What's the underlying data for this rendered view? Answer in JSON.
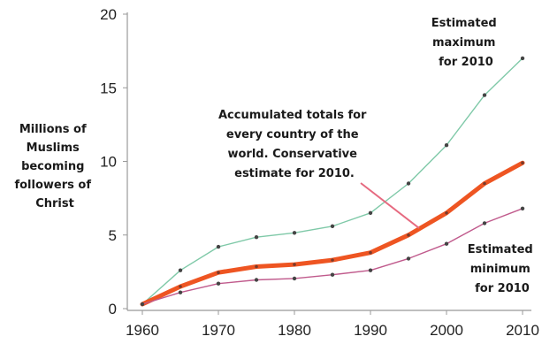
{
  "chart_data": {
    "type": "line",
    "ylabel_lines": [
      "Millions of",
      "Muslims",
      "becoming",
      "followers of",
      "Christ"
    ],
    "x": [
      1960,
      1965,
      1970,
      1975,
      1980,
      1985,
      1990,
      1995,
      2000,
      2005,
      2010
    ],
    "xticks": [
      1960,
      1970,
      1980,
      1990,
      2000,
      2010
    ],
    "yticks": [
      0,
      5,
      10,
      15,
      20
    ],
    "xlim": [
      1960,
      2010
    ],
    "ylim": [
      0,
      20
    ],
    "grid": false,
    "series": [
      {
        "key": "maximum",
        "color": "#7fc9a8",
        "values": [
          0.3,
          2.6,
          4.2,
          4.85,
          5.15,
          5.6,
          6.5,
          8.5,
          11.1,
          14.5,
          17.0
        ]
      },
      {
        "key": "conservative",
        "color": "#ee5522",
        "values": [
          0.3,
          1.5,
          2.45,
          2.85,
          3.0,
          3.3,
          3.8,
          5.0,
          6.5,
          8.5,
          9.9
        ]
      },
      {
        "key": "minimum",
        "color": "#c05a8c",
        "values": [
          0.3,
          1.1,
          1.7,
          1.95,
          2.05,
          2.3,
          2.6,
          3.4,
          4.4,
          5.8,
          6.8
        ]
      }
    ],
    "annotations": {
      "maximum": [
        "Estimated",
        "maximum",
        "for 2010"
      ],
      "conservative": [
        "Accumulated totals for",
        "every country of the",
        "world. Conservative",
        "estimate for 2010."
      ],
      "minimum": [
        "Estimated",
        "minimum",
        "for 2010"
      ]
    },
    "pointer_color": "#e66a80"
  }
}
